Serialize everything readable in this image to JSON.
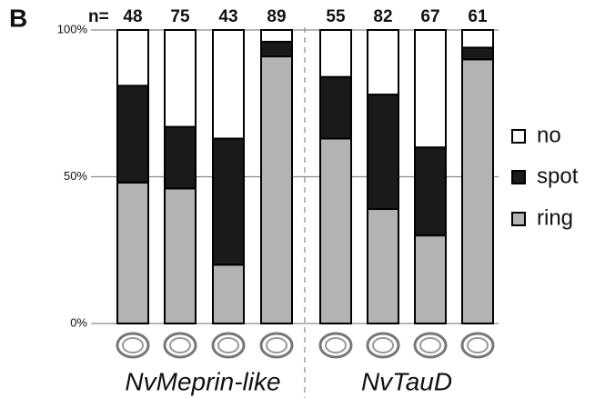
{
  "chart_data": {
    "type": "stacked_bar",
    "panel_label": "B",
    "n_label": "n=",
    "counts": [
      48,
      75,
      43,
      89,
      55,
      82,
      67,
      61
    ],
    "categories": [
      null,
      null,
      null,
      null,
      null,
      null,
      null,
      null
    ],
    "groups": [
      "NvMeprin-like",
      "NvTauD"
    ],
    "series": [
      {
        "name": "ring",
        "color": "#b3b3b3",
        "values": [
          48,
          46,
          20,
          91,
          63,
          39,
          30,
          90
        ]
      },
      {
        "name": "spot",
        "color": "#1a1a1a",
        "values": [
          33,
          21,
          43,
          5,
          21,
          39,
          30,
          4
        ]
      },
      {
        "name": "no",
        "color": "#ffffff",
        "values": [
          19,
          33,
          37,
          4,
          16,
          22,
          40,
          6
        ]
      }
    ],
    "ylim": [
      0,
      100
    ],
    "yticks": [
      {
        "value": 0,
        "label": "0%"
      },
      {
        "value": 50,
        "label": "50%"
      },
      {
        "value": 100,
        "label": "100%"
      }
    ],
    "grid": true
  }
}
